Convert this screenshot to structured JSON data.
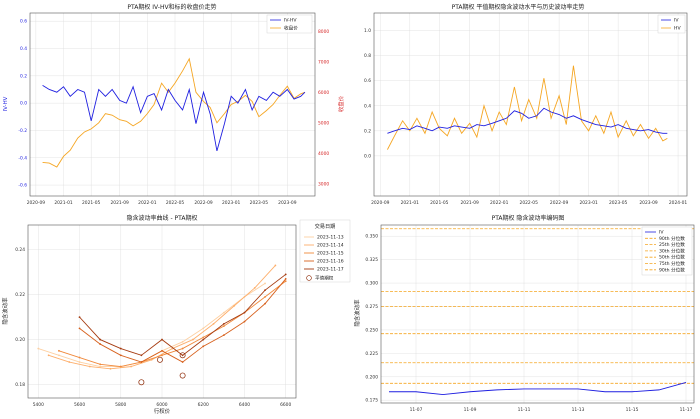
{
  "charts": {
    "c1": {
      "title": "PTA期权 IV-HV和标的收盘价走势",
      "ylabel_left": "IV-HV",
      "ylabel_right": "收盘价",
      "legend": {
        "iv_hv": "IV-HV",
        "close": "收盘价"
      },
      "x_ticks": [
        "2020-09",
        "2021-01",
        "2021-05",
        "2021-09",
        "2022-01",
        "2022-05",
        "2022-09",
        "2023-01",
        "2023-05",
        "2023-09"
      ],
      "y_left_ticks": [
        "-0.6",
        "-0.4",
        "-0.2",
        "0.0",
        "0.2",
        "0.4",
        "0.6"
      ],
      "y_right_ticks": [
        "3000",
        "4000",
        "5000",
        "6000",
        "7000",
        "8000"
      ]
    },
    "c2": {
      "title": "PTA期权 平值期权隐含波动水平与历史波动率走势",
      "legend": {
        "iv": "IV",
        "hv": "HV"
      },
      "x_ticks": [
        "2020-09",
        "2021-01",
        "2021-05",
        "2021-09",
        "2022-01",
        "2022-05",
        "2022-09",
        "2023-01",
        "2023-05",
        "2023-09",
        "2024-01"
      ],
      "y_ticks": [
        "0.0",
        "0.2",
        "0.4",
        "0.6",
        "0.8",
        "1.0"
      ]
    },
    "c3": {
      "title": "隐含波动率曲线 - PTA期权",
      "xlabel": "行权价",
      "ylabel": "隐含波动率",
      "legend_title": "交易日期",
      "legend_dates": [
        "2023-11-13",
        "2023-11-14",
        "2023-11-15",
        "2023-11-16",
        "2023-11-17"
      ],
      "legend_atm": "平值期权",
      "x_ticks": [
        "5400",
        "5600",
        "5800",
        "6000",
        "6200",
        "6400",
        "6600"
      ],
      "y_ticks": [
        "0.18",
        "0.20",
        "0.22",
        "0.24"
      ]
    },
    "c4": {
      "title": "PTA期权 隐含波动率编码图",
      "ylabel": "隐含波动率",
      "legend": [
        "IV",
        "90th 分位数",
        "25th 分位数",
        "30th 分位数",
        "50th 分位数",
        "75th 分位数",
        "90th 分位数"
      ],
      "x_ticks": [
        "11-07",
        "11-09",
        "11-11",
        "11-13",
        "11-15",
        "11-17"
      ],
      "y_ticks": [
        "0.175",
        "0.200",
        "0.225",
        "0.250",
        "0.275",
        "0.300",
        "0.325",
        "0.350"
      ]
    }
  },
  "colors": {
    "blue": "#1f1fe0",
    "orange": "#f5a623",
    "red": "#d62728",
    "atm": "#8b2500",
    "quantile": "#f5a623"
  },
  "chart_data": [
    {
      "type": "line",
      "title": "PTA期权 IV-HV和标的收盘价走势",
      "series": [
        {
          "name": "IV-HV",
          "axis": "left",
          "points": [
            [
              2020.75,
              0.13
            ],
            [
              2020.83,
              0.1
            ],
            [
              2020.92,
              0.08
            ],
            [
              2021.0,
              0.12
            ],
            [
              2021.08,
              0.05
            ],
            [
              2021.17,
              0.1
            ],
            [
              2021.25,
              0.08
            ],
            [
              2021.33,
              -0.13
            ],
            [
              2021.42,
              0.1
            ],
            [
              2021.5,
              0.05
            ],
            [
              2021.58,
              0.1
            ],
            [
              2021.67,
              0.02
            ],
            [
              2021.75,
              0.0
            ],
            [
              2021.83,
              0.12
            ],
            [
              2021.92,
              -0.07
            ],
            [
              2022.0,
              0.05
            ],
            [
              2022.08,
              0.07
            ],
            [
              2022.17,
              -0.05
            ],
            [
              2022.25,
              0.1
            ],
            [
              2022.33,
              0.02
            ],
            [
              2022.42,
              -0.05
            ],
            [
              2022.5,
              0.1
            ],
            [
              2022.58,
              -0.15
            ],
            [
              2022.67,
              0.08
            ],
            [
              2022.75,
              -0.08
            ],
            [
              2022.83,
              -0.35
            ],
            [
              2022.92,
              -0.15
            ],
            [
              2023.0,
              0.05
            ],
            [
              2023.08,
              0.0
            ],
            [
              2023.17,
              0.1
            ],
            [
              2023.25,
              -0.05
            ],
            [
              2023.33,
              0.05
            ],
            [
              2023.42,
              0.02
            ],
            [
              2023.5,
              0.08
            ],
            [
              2023.58,
              0.05
            ],
            [
              2023.67,
              0.1
            ],
            [
              2023.75,
              0.03
            ],
            [
              2023.83,
              0.05
            ],
            [
              2023.88,
              0.08
            ]
          ]
        },
        {
          "name": "收盘价",
          "axis": "right",
          "points": [
            [
              2020.75,
              3700
            ],
            [
              2020.83,
              3680
            ],
            [
              2020.92,
              3550
            ],
            [
              2021.0,
              3900
            ],
            [
              2021.08,
              4100
            ],
            [
              2021.17,
              4500
            ],
            [
              2021.25,
              4700
            ],
            [
              2021.33,
              4800
            ],
            [
              2021.42,
              5000
            ],
            [
              2021.5,
              5300
            ],
            [
              2021.58,
              5250
            ],
            [
              2021.67,
              5100
            ],
            [
              2021.75,
              5050
            ],
            [
              2021.83,
              4900
            ],
            [
              2021.92,
              5050
            ],
            [
              2022.0,
              5300
            ],
            [
              2022.08,
              5600
            ],
            [
              2022.17,
              6300
            ],
            [
              2022.25,
              6000
            ],
            [
              2022.33,
              6300
            ],
            [
              2022.42,
              6700
            ],
            [
              2022.5,
              7100
            ],
            [
              2022.58,
              6000
            ],
            [
              2022.67,
              5700
            ],
            [
              2022.75,
              5500
            ],
            [
              2022.83,
              5000
            ],
            [
              2022.92,
              5300
            ],
            [
              2023.0,
              5600
            ],
            [
              2023.08,
              5700
            ],
            [
              2023.17,
              5900
            ],
            [
              2023.25,
              5700
            ],
            [
              2023.33,
              5200
            ],
            [
              2023.42,
              5400
            ],
            [
              2023.5,
              5600
            ],
            [
              2023.58,
              5900
            ],
            [
              2023.67,
              6200
            ],
            [
              2023.75,
              5800
            ],
            [
              2023.83,
              5950
            ],
            [
              2023.88,
              6000
            ]
          ]
        }
      ],
      "ylim_left": [
        -0.68,
        0.66
      ],
      "ylim_right": [
        2600,
        8600
      ]
    },
    {
      "type": "line",
      "title": "PTA期权 平值期权隐含波动水平与历史波动率走势",
      "series": [
        {
          "name": "IV",
          "points": [
            [
              2020.75,
              0.18
            ],
            [
              2020.83,
              0.2
            ],
            [
              2020.92,
              0.22
            ],
            [
              2021.0,
              0.21
            ],
            [
              2021.08,
              0.24
            ],
            [
              2021.17,
              0.22
            ],
            [
              2021.25,
              0.2
            ],
            [
              2021.33,
              0.23
            ],
            [
              2021.42,
              0.22
            ],
            [
              2021.5,
              0.24
            ],
            [
              2021.58,
              0.23
            ],
            [
              2021.67,
              0.22
            ],
            [
              2021.75,
              0.25
            ],
            [
              2021.83,
              0.24
            ],
            [
              2021.92,
              0.26
            ],
            [
              2022.0,
              0.28
            ],
            [
              2022.08,
              0.3
            ],
            [
              2022.17,
              0.36
            ],
            [
              2022.25,
              0.34
            ],
            [
              2022.33,
              0.3
            ],
            [
              2022.42,
              0.32
            ],
            [
              2022.5,
              0.38
            ],
            [
              2022.58,
              0.35
            ],
            [
              2022.67,
              0.33
            ],
            [
              2022.75,
              0.3
            ],
            [
              2022.83,
              0.32
            ],
            [
              2022.92,
              0.29
            ],
            [
              2023.0,
              0.27
            ],
            [
              2023.08,
              0.25
            ],
            [
              2023.17,
              0.24
            ],
            [
              2023.25,
              0.23
            ],
            [
              2023.33,
              0.25
            ],
            [
              2023.42,
              0.22
            ],
            [
              2023.5,
              0.21
            ],
            [
              2023.58,
              0.2
            ],
            [
              2023.67,
              0.21
            ],
            [
              2023.75,
              0.19
            ],
            [
              2023.83,
              0.18
            ],
            [
              2023.88,
              0.18
            ]
          ]
        },
        {
          "name": "HV",
          "points": [
            [
              2020.75,
              0.05
            ],
            [
              2020.83,
              0.16
            ],
            [
              2020.92,
              0.28
            ],
            [
              2021.0,
              0.2
            ],
            [
              2021.08,
              0.3
            ],
            [
              2021.17,
              0.18
            ],
            [
              2021.25,
              0.35
            ],
            [
              2021.33,
              0.22
            ],
            [
              2021.42,
              0.16
            ],
            [
              2021.5,
              0.3
            ],
            [
              2021.58,
              0.18
            ],
            [
              2021.67,
              0.26
            ],
            [
              2021.75,
              0.15
            ],
            [
              2021.83,
              0.4
            ],
            [
              2021.92,
              0.2
            ],
            [
              2022.0,
              0.35
            ],
            [
              2022.08,
              0.25
            ],
            [
              2022.17,
              0.55
            ],
            [
              2022.25,
              0.28
            ],
            [
              2022.33,
              0.45
            ],
            [
              2022.42,
              0.3
            ],
            [
              2022.5,
              0.62
            ],
            [
              2022.58,
              0.3
            ],
            [
              2022.67,
              0.48
            ],
            [
              2022.75,
              0.25
            ],
            [
              2022.83,
              0.72
            ],
            [
              2022.92,
              0.28
            ],
            [
              2023.0,
              0.2
            ],
            [
              2023.08,
              0.32
            ],
            [
              2023.17,
              0.18
            ],
            [
              2023.25,
              0.35
            ],
            [
              2023.33,
              0.15
            ],
            [
              2023.42,
              0.28
            ],
            [
              2023.5,
              0.16
            ],
            [
              2023.58,
              0.25
            ],
            [
              2023.67,
              0.14
            ],
            [
              2023.75,
              0.22
            ],
            [
              2023.83,
              0.12
            ],
            [
              2023.88,
              0.14
            ]
          ]
        }
      ],
      "ylim": [
        -0.32,
        1.14
      ]
    },
    {
      "type": "line",
      "title": "隐含波动率曲线 - PTA期权",
      "series": [
        {
          "name": "2023-11-13",
          "x": [
            5400,
            5500,
            5600,
            5700,
            5800,
            5900,
            6000,
            6100,
            6200,
            6300,
            6400,
            6500
          ],
          "values": [
            0.196,
            0.193,
            0.19,
            0.188,
            0.188,
            0.19,
            0.195,
            0.199,
            0.205,
            0.212,
            0.219,
            0.225
          ]
        },
        {
          "name": "2023-11-14",
          "x": [
            5450,
            5550,
            5650,
            5750,
            5850,
            5950,
            6050,
            6150,
            6250,
            6350,
            6450,
            6550
          ],
          "values": [
            0.193,
            0.19,
            0.188,
            0.187,
            0.188,
            0.191,
            0.196,
            0.2,
            0.207,
            0.215,
            0.223,
            0.233
          ]
        },
        {
          "name": "2023-11-15",
          "x": [
            5500,
            5600,
            5700,
            5800,
            5900,
            6000,
            6100,
            6200,
            6300,
            6400,
            6500,
            6600
          ],
          "values": [
            0.195,
            0.192,
            0.189,
            0.188,
            0.19,
            0.193,
            0.196,
            0.201,
            0.206,
            0.212,
            0.219,
            0.226
          ]
        },
        {
          "name": "2023-11-16",
          "x": [
            5600,
            5700,
            5800,
            5900,
            6000,
            6100,
            6200,
            6300,
            6400,
            6500,
            6600
          ],
          "values": [
            0.205,
            0.198,
            0.193,
            0.19,
            0.195,
            0.19,
            0.197,
            0.202,
            0.208,
            0.216,
            0.227
          ]
        },
        {
          "name": "2023-11-17",
          "x": [
            5600,
            5700,
            5800,
            5900,
            6000,
            6100,
            6200,
            6300,
            6400,
            6500,
            6600
          ],
          "values": [
            0.21,
            0.2,
            0.196,
            0.193,
            0.2,
            0.193,
            0.2,
            0.207,
            0.212,
            0.222,
            0.229
          ]
        }
      ],
      "atm_points": [
        [
          5900,
          0.181
        ],
        [
          5990,
          0.191
        ],
        [
          6100,
          0.184
        ],
        [
          6100,
          0.193
        ]
      ],
      "xlim": [
        5350,
        6650
      ],
      "ylim": [
        0.174,
        0.251
      ]
    },
    {
      "type": "line",
      "title": "PTA期权 隐含波动率编码图",
      "series": [
        {
          "name": "IV",
          "x": [
            "11-06",
            "11-07",
            "11-08",
            "11-09",
            "11-10",
            "11-11",
            "11-12",
            "11-13",
            "11-14",
            "11-15",
            "11-16",
            "11-17"
          ],
          "values": [
            0.184,
            0.184,
            0.181,
            0.184,
            0.186,
            0.187,
            0.187,
            0.187,
            0.184,
            0.184,
            0.186,
            0.194
          ]
        }
      ],
      "hlines": [
        0.358,
        0.291,
        0.275,
        0.246,
        0.215,
        0.193
      ],
      "ylim": [
        0.172,
        0.362
      ]
    }
  ]
}
